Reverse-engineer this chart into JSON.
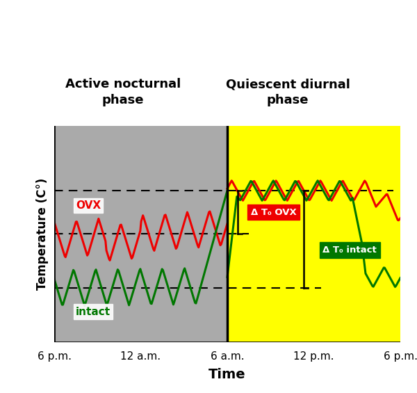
{
  "title_nocturnal": "Active nocturnal\nphase",
  "title_diurnal": "Quiescent diurnal\nphase",
  "xlabel": "Time",
  "ylabel": "Temperature (C°)",
  "xtick_labels": [
    "6 p.m.",
    "12 a.m.",
    "6 a.m.",
    "12 p.m.",
    "6 p.m."
  ],
  "xtick_positions": [
    0,
    6,
    12,
    18,
    24
  ],
  "phase_boundary": 12,
  "gray_bg": "#aaaaaa",
  "yellow_bg": "#ffff00",
  "ovx_color": "#ee0000",
  "intact_color": "#007700",
  "dashed_line_ovx": 5.5,
  "dashed_line_intact": 3.0,
  "dashed_line_top": 7.5,
  "ylim": [
    0.5,
    10.5
  ],
  "xlim": [
    0,
    24
  ],
  "label_ovx": "OVX",
  "label_intact": "intact",
  "annotation_ovx": "Δ T₀ OVX",
  "annotation_intact": "Δ T₀ intact",
  "figsize": [
    6.0,
    5.65
  ],
  "dpi": 100
}
